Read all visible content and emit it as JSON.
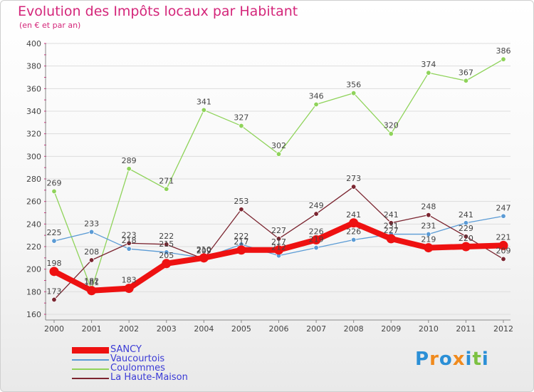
{
  "header": {
    "title": "Evolution des Impôts locaux par Habitant",
    "subtitle": "(en € et par an)"
  },
  "logo": {
    "text": "Proxiti",
    "letters": [
      "P",
      "r",
      "o",
      "x",
      "i",
      "t",
      "i"
    ],
    "colors": [
      "#2b8fd6",
      "#f08a1d",
      "#2b8fd6",
      "#f08a1d",
      "#2b8fd6",
      "#7cc142",
      "#2b8fd6"
    ]
  },
  "chart_data": {
    "type": "line",
    "title": "Evolution des Impôts locaux par Habitant",
    "subtitle": "(en € et par an)",
    "xlabel": "",
    "ylabel": "",
    "ylim": [
      160,
      400
    ],
    "yticks": [
      "160",
      "180",
      "200",
      "220",
      "240",
      "260",
      "280",
      "300",
      "320",
      "340",
      "360",
      "380",
      "400"
    ],
    "categories": [
      "2000",
      "2001",
      "2002",
      "2003",
      "2004",
      "2005",
      "2006",
      "2007",
      "2008",
      "2009",
      "2010",
      "2011",
      "2012"
    ],
    "grid": "horizontal",
    "series": [
      {
        "name": "Coulommes",
        "color": "#8fd35a",
        "values": [
          269,
          182,
          289,
          271,
          341,
          327,
          302,
          346,
          356,
          320,
          374,
          367,
          386
        ],
        "labels": [
          "269",
          "182",
          "289",
          "271",
          "341",
          "327",
          "302",
          "346",
          "356",
          "320",
          "374",
          "367",
          "386"
        ]
      },
      {
        "name": "Vaucourtois",
        "color": "#5b9bd5",
        "values": [
          225,
          233,
          218,
          215,
          210,
          222,
          212,
          219,
          226,
          231,
          231,
          241,
          247
        ],
        "labels": [
          "225",
          "233",
          "218",
          "215",
          "210",
          "222",
          "212",
          "219",
          "226",
          "231",
          "231",
          "241",
          "247"
        ]
      },
      {
        "name": "La Haute-Maison",
        "color": "#7b2530",
        "values": [
          173,
          208,
          223,
          222,
          209,
          253,
          227,
          249,
          273,
          241,
          248,
          229,
          209
        ],
        "labels": [
          "173",
          "208",
          "223",
          "222",
          "209",
          "253",
          "227",
          "249",
          "273",
          "241",
          "248",
          "229",
          "209"
        ]
      },
      {
        "name": "SANCY",
        "color": "#ee1111",
        "values": [
          198,
          181,
          183,
          205,
          210,
          217,
          217,
          226,
          241,
          227,
          219,
          220,
          221
        ],
        "labels": [
          "198",
          "181",
          "183",
          "205",
          "210",
          "217",
          "217",
          "226",
          "241",
          "227",
          "219",
          "220",
          "221"
        ]
      }
    ],
    "legend": [
      "SANCY",
      "Vaucourtois",
      "Coulommes",
      "La Haute-Maison"
    ],
    "legend_position": "bottom-left"
  }
}
